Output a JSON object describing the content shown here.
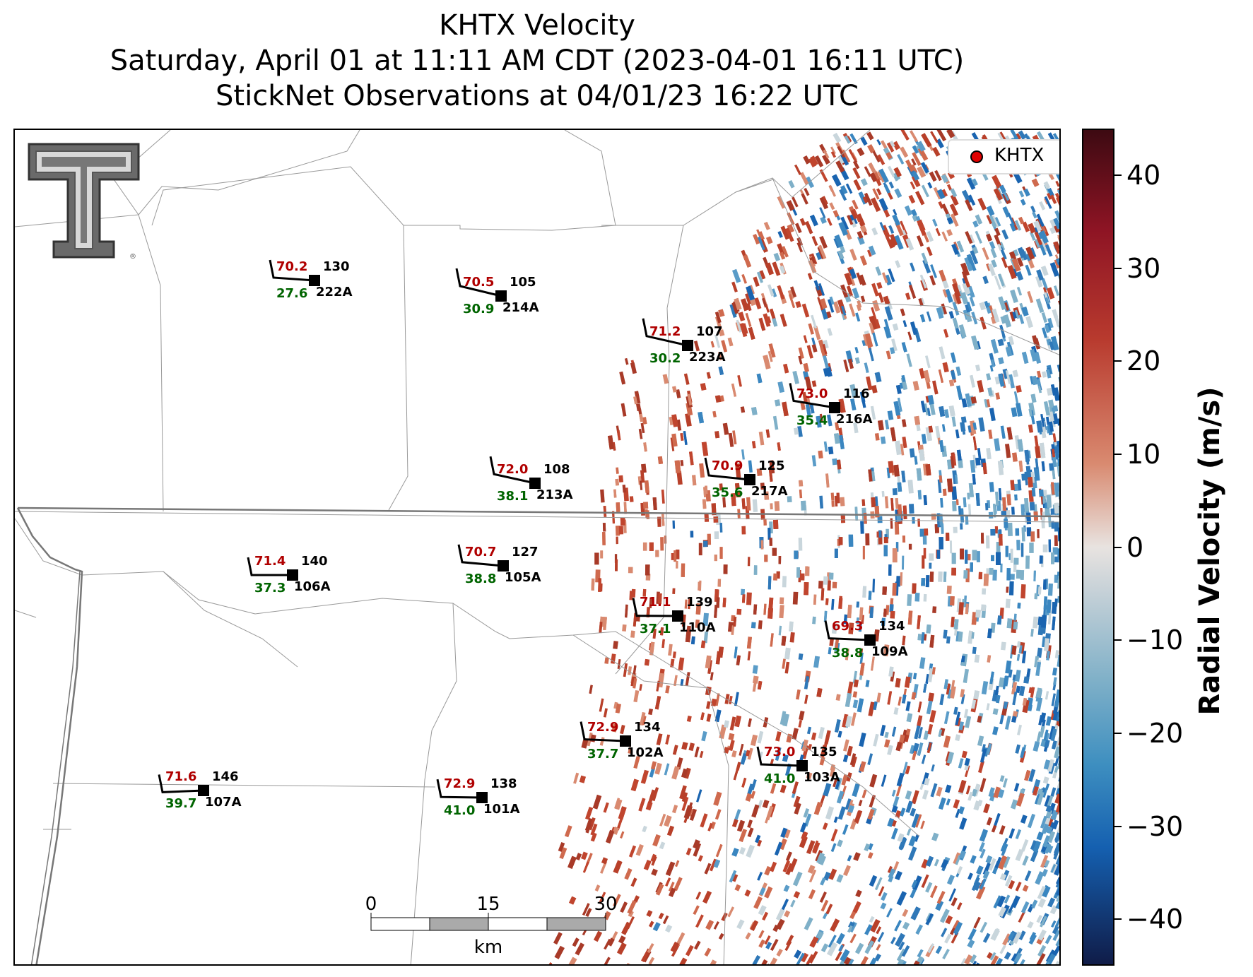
{
  "title": {
    "line1": "KHTX Velocity",
    "line2": "Saturday, April 01 at 11:11 AM CDT (2023-04-01 16:11 UTC)",
    "line3": "StickNet Observations at 04/01/23 16:22 UTC"
  },
  "legend": {
    "label": "KHTX",
    "marker_color": "#e00000"
  },
  "colorbar": {
    "label": "Radial Velocity (m/s)",
    "ticks": [
      "40",
      "30",
      "20",
      "10",
      "0",
      "−10",
      "−20",
      "−30",
      "−40"
    ],
    "range": [
      -45,
      45
    ]
  },
  "scalebar": {
    "ticks": [
      "0",
      "15",
      "30"
    ],
    "unit": "km"
  },
  "colors": {
    "temperature": "#b00000",
    "dewpoint": "#006400",
    "station": "#000000"
  },
  "stations": [
    {
      "id": "222A",
      "temp": "70.2",
      "dew": "27.6",
      "dir": "130"
    },
    {
      "id": "214A",
      "temp": "70.5",
      "dew": "30.9",
      "dir": "105"
    },
    {
      "id": "223A",
      "temp": "71.2",
      "dew": "30.2",
      "dir": "107"
    },
    {
      "id": "216A",
      "temp": "73.0",
      "dew": "35.4",
      "dir": "116"
    },
    {
      "id": "213A",
      "temp": "72.0",
      "dew": "38.1",
      "dir": "108"
    },
    {
      "id": "217A",
      "temp": "70.9",
      "dew": "35.6",
      "dir": "125"
    },
    {
      "id": "106A",
      "temp": "71.4",
      "dew": "37.3",
      "dir": "140"
    },
    {
      "id": "105A",
      "temp": "70.7",
      "dew": "38.8",
      "dir": "127"
    },
    {
      "id": "110A",
      "temp": "71.1",
      "dew": "37.1",
      "dir": "139"
    },
    {
      "id": "109A",
      "temp": "69.3",
      "dew": "38.8",
      "dir": "134"
    },
    {
      "id": "102A",
      "temp": "72.9",
      "dew": "37.7",
      "dir": "134"
    },
    {
      "id": "103A",
      "temp": "73.0",
      "dew": "41.0",
      "dir": "135"
    },
    {
      "id": "107A",
      "temp": "71.6",
      "dew": "39.7",
      "dir": "146"
    },
    {
      "id": "101A",
      "temp": "72.9",
      "dew": "41.0",
      "dir": "138"
    }
  ]
}
